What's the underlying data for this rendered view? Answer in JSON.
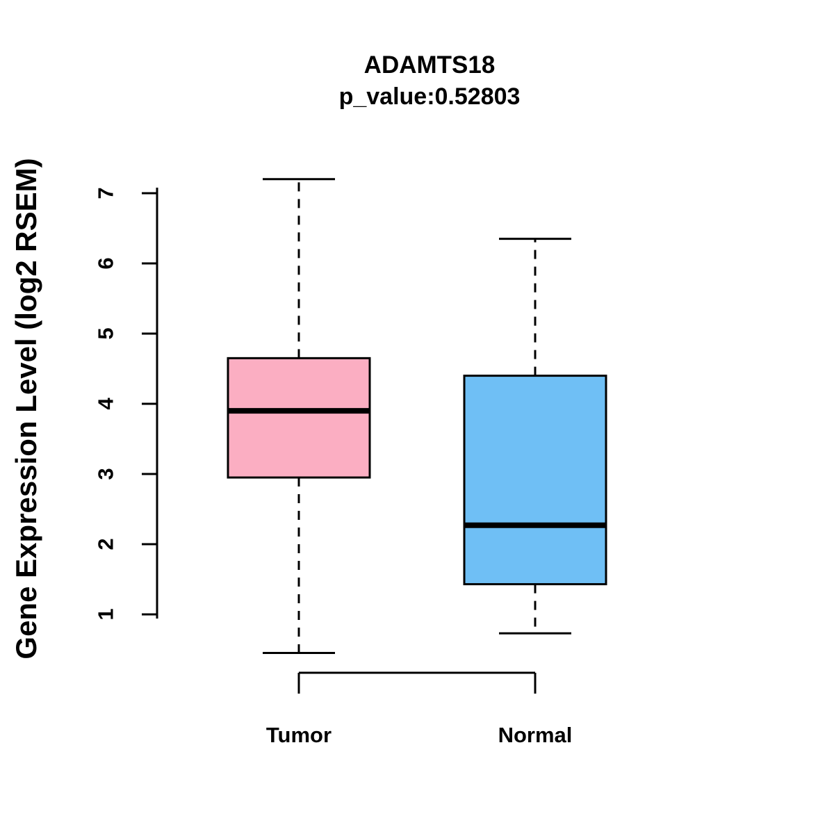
{
  "chart_data": {
    "type": "boxplot",
    "title": "ADAMTS18",
    "subtitle": "p_value:0.52803",
    "ylabel": "Gene Expression Level (log2 RSEM)",
    "xlabel": "",
    "categories": [
      "Tumor",
      "Normal"
    ],
    "y_ticks": [
      1,
      2,
      3,
      4,
      5,
      6,
      7
    ],
    "ylim": [
      0.3,
      7.5
    ],
    "grid": false,
    "legend": "none",
    "series": [
      {
        "name": "Tumor",
        "whisker_min": 0.45,
        "q1": 2.95,
        "median": 3.9,
        "q3": 4.65,
        "whisker_max": 7.2,
        "fill_color": "#FBAEC2"
      },
      {
        "name": "Normal",
        "whisker_min": 0.73,
        "q1": 1.43,
        "median": 2.27,
        "q3": 4.4,
        "whisker_max": 6.35,
        "fill_color": "#6FBFF5"
      }
    ],
    "style": {
      "box_border_color": "#000000",
      "median_color": "#000000",
      "whisker_style": "dashed",
      "axis_color": "#000000"
    }
  }
}
